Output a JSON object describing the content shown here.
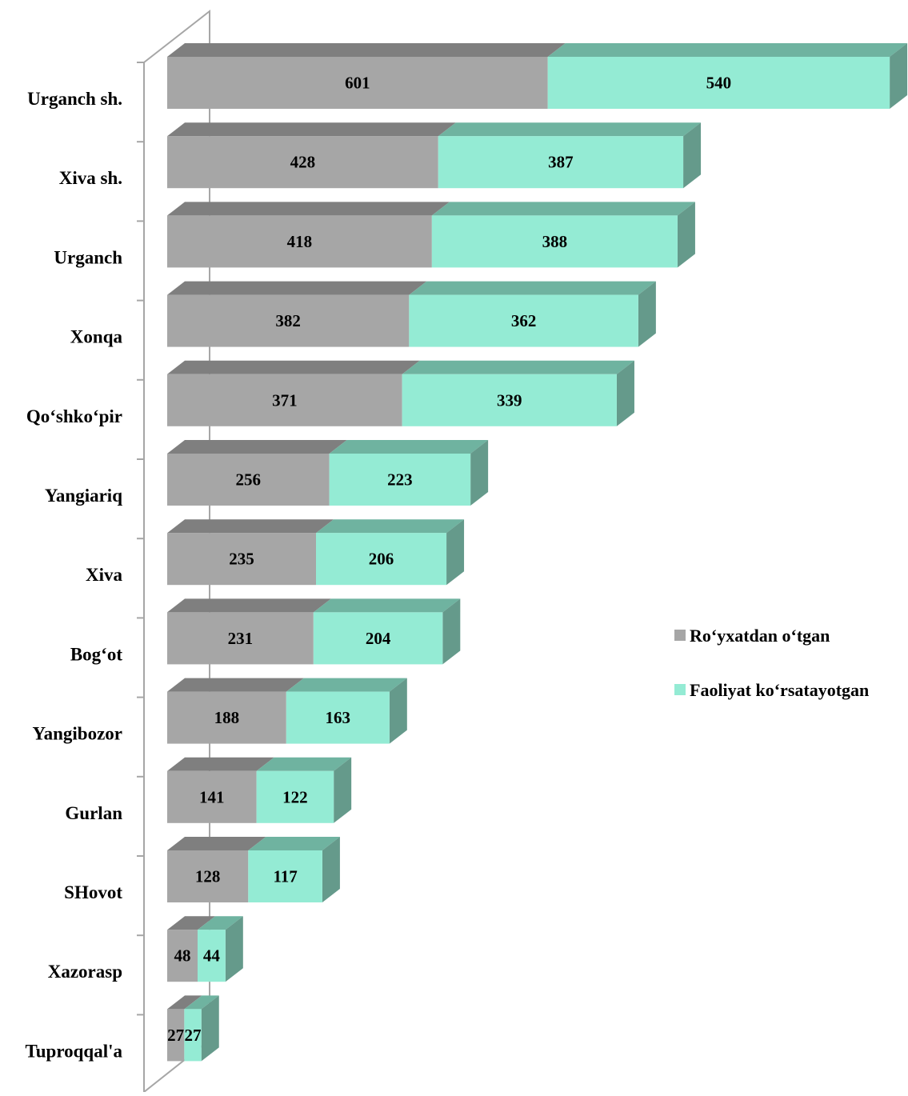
{
  "colors": {
    "series1_front": "#a6a6a6",
    "series1_top": "#7f7f7f",
    "series2_front": "#94ebd4",
    "series2_top": "#6fb3a0",
    "series2_side": "#659a8b",
    "wall": "#a6a6a6"
  },
  "chart_data": {
    "type": "bar",
    "orientation": "horizontal",
    "stacked": true,
    "style": "3d",
    "categories": [
      "Urganch sh.",
      "Xiva sh.",
      "Urganch",
      "Xonqa",
      "Qo‘shko‘pir",
      "Yangiariq",
      "Xiva",
      "Bog‘ot",
      "Yangibozor",
      "Gurlan",
      "SHovot",
      "Xazorasp",
      "Tuproqqal'a"
    ],
    "series": [
      {
        "name": "Ro‘yxatdan o‘tgan",
        "values": [
          601,
          428,
          418,
          382,
          371,
          256,
          235,
          231,
          188,
          141,
          128,
          48,
          27
        ]
      },
      {
        "name": "Faoliyat ko‘rsatayotgan",
        "values": [
          540,
          387,
          388,
          362,
          339,
          223,
          206,
          204,
          163,
          122,
          117,
          44,
          27
        ]
      }
    ],
    "xlim": [
      0,
      1141
    ],
    "grid": false,
    "legend_position": "right"
  }
}
